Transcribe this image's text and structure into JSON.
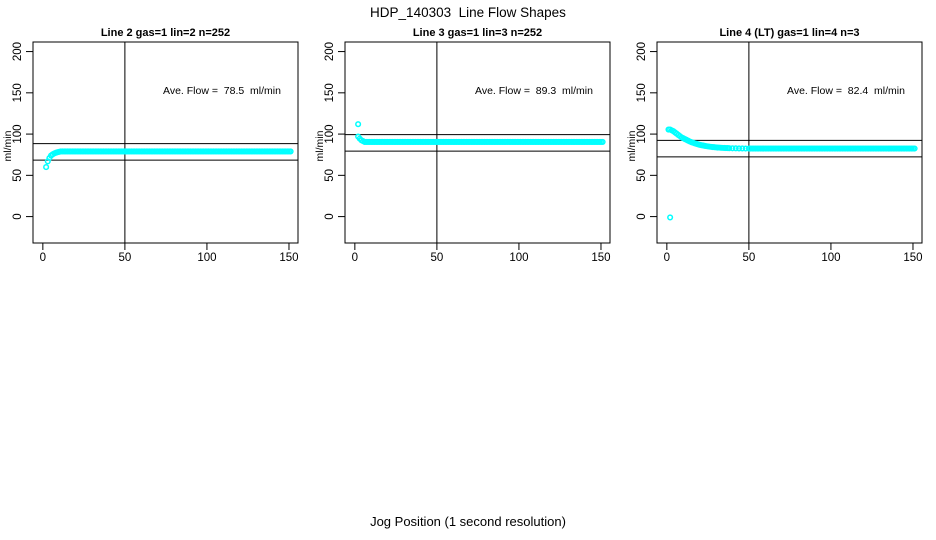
{
  "figure": {
    "title": "HDP_140303  Line Flow Shapes",
    "xlabel": "Jog Position (1 second resolution)",
    "background": "#FFFFFF",
    "axis_color": "#000000",
    "point_color": "#00FFFF"
  },
  "chart_data": [
    {
      "type": "scatter",
      "title": "Line 2 gas=1 lin=2 n=252",
      "annotation": "Ave. Flow =  78.5  ml/min",
      "ave_flow_ml_min": 78.5,
      "n": 252,
      "ylabel": "ml/min",
      "xticks": [
        0,
        50,
        100,
        150
      ],
      "yticks": [
        0,
        50,
        100,
        150,
        200
      ],
      "xlim": [
        -6,
        155.5
      ],
      "ylim": [
        -32,
        211.6
      ],
      "vline_x": 50,
      "hlines": [
        88.5,
        68.5
      ],
      "grid": false,
      "points": [
        [
          2,
          60
        ],
        [
          3,
          67
        ],
        [
          4,
          71
        ],
        [
          5,
          74
        ],
        [
          6,
          75.5
        ],
        [
          7,
          76.6
        ],
        [
          8,
          77.4
        ],
        [
          9,
          78
        ],
        [
          10,
          78.5
        ]
      ],
      "plateau": {
        "x_start": 11,
        "x_end": 151,
        "y": 79,
        "step": 1
      }
    },
    {
      "type": "scatter",
      "title": "Line 3 gas=1 lin=3 n=252",
      "annotation": "Ave. Flow =  89.3  ml/min",
      "ave_flow_ml_min": 89.3,
      "n": 252,
      "ylabel": "ml/min",
      "xticks": [
        0,
        50,
        100,
        150
      ],
      "yticks": [
        0,
        50,
        100,
        150,
        200
      ],
      "xlim": [
        -6,
        155.5
      ],
      "ylim": [
        -32,
        211.6
      ],
      "vline_x": 50,
      "hlines": [
        99.3,
        79.3
      ],
      "grid": false,
      "points": [
        [
          2,
          112
        ],
        [
          2,
          97
        ],
        [
          3,
          94.5
        ],
        [
          4,
          92.5
        ],
        [
          5,
          91.5
        ]
      ],
      "plateau": {
        "x_start": 6,
        "x_end": 151,
        "y": 90.5,
        "step": 1
      }
    },
    {
      "type": "scatter",
      "title": "Line 4 (LT) gas=1 lin=4 n=3",
      "annotation": "Ave. Flow =  82.4  ml/min",
      "ave_flow_ml_min": 82.4,
      "n": 3,
      "ylabel": "ml/min",
      "xticks": [
        0,
        50,
        100,
        150
      ],
      "yticks": [
        0,
        50,
        100,
        150,
        200
      ],
      "xlim": [
        -6,
        155.5
      ],
      "ylim": [
        -32,
        211.6
      ],
      "vline_x": 50,
      "hlines": [
        92.4,
        72.4
      ],
      "grid": false,
      "points": [
        [
          2,
          -1
        ],
        [
          1,
          105.5
        ],
        [
          2,
          105.5
        ],
        [
          3,
          104.5
        ],
        [
          4,
          103.5
        ],
        [
          5,
          102
        ],
        [
          6,
          100.5
        ],
        [
          7,
          99
        ],
        [
          8,
          97.5
        ],
        [
          9,
          96
        ],
        [
          10,
          95
        ],
        [
          11,
          94
        ],
        [
          12,
          93
        ],
        [
          13,
          92
        ],
        [
          14,
          91
        ],
        [
          15,
          90.2
        ],
        [
          16,
          89.5
        ],
        [
          17,
          88.8
        ],
        [
          18,
          88.2
        ],
        [
          19,
          87.6
        ],
        [
          20,
          87
        ],
        [
          21,
          86.6
        ],
        [
          22,
          86.2
        ],
        [
          23,
          85.8
        ],
        [
          24,
          85.4
        ],
        [
          25,
          85.1
        ],
        [
          26,
          84.8
        ],
        [
          27,
          84.5
        ],
        [
          28,
          84.3
        ],
        [
          29,
          84.1
        ],
        [
          30,
          83.9
        ],
        [
          31,
          83.7
        ],
        [
          32,
          83.6
        ],
        [
          33,
          83.4
        ],
        [
          34,
          83.3
        ],
        [
          35,
          83.2
        ],
        [
          36,
          83.1
        ],
        [
          37,
          83
        ],
        [
          38,
          82.9
        ],
        [
          40,
          82.8
        ],
        [
          42,
          82.7
        ],
        [
          44,
          82.6
        ],
        [
          46,
          82.6
        ],
        [
          48,
          82.5
        ]
      ],
      "plateau": {
        "x_start": 50,
        "x_end": 151,
        "y": 82.5,
        "step": 1
      }
    }
  ]
}
